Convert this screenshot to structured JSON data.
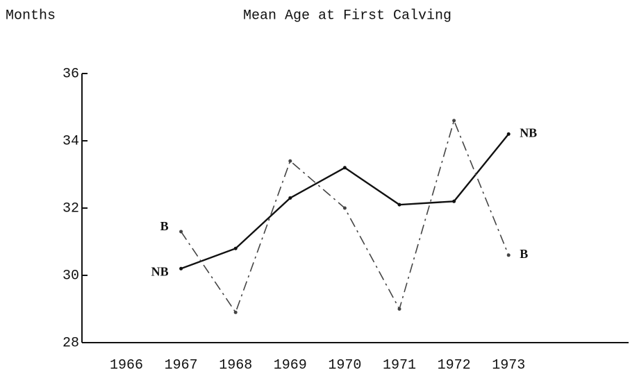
{
  "chart_data": {
    "type": "line",
    "title": "Mean Age at First Calving",
    "y_label": "Months",
    "categories": [
      "1966",
      "1967",
      "1968",
      "1969",
      "1970",
      "1971",
      "1972",
      "1973"
    ],
    "series": [
      {
        "name": "NB",
        "color": "#111111",
        "dash": false,
        "values": [
          null,
          30.2,
          30.8,
          32.3,
          33.2,
          32.1,
          32.2,
          34.2
        ]
      },
      {
        "name": "B",
        "color": "#444444",
        "dash": true,
        "values": [
          null,
          31.3,
          28.9,
          33.4,
          32.0,
          29.0,
          34.6,
          30.6
        ]
      }
    ],
    "ylim": [
      28,
      36
    ],
    "yticks": [
      28,
      30,
      32,
      34,
      36
    ]
  }
}
